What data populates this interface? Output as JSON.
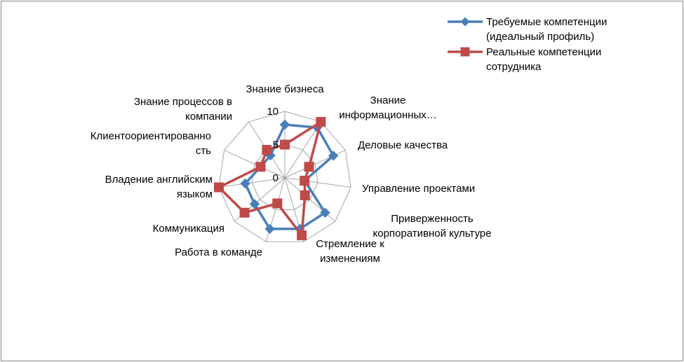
{
  "chart_data": {
    "type": "radar",
    "categories": [
      [
        "Знание бизнеса"
      ],
      [
        "Знание",
        "информационных…"
      ],
      [
        "Деловые качества"
      ],
      [
        "Управление проектами"
      ],
      [
        "Приверженность",
        "корпоративной культуре"
      ],
      [
        "Стремление к",
        "изменениям"
      ],
      [
        "Работа в команде"
      ],
      [
        "Коммуникация"
      ],
      [
        "Владение английским",
        "языком"
      ],
      [
        "Клиентоориентированно",
        "сть"
      ],
      [
        "Знание процессов в",
        "компании"
      ]
    ],
    "ticks": [
      "0",
      "5",
      "10"
    ],
    "range": [
      0,
      10
    ],
    "series": [
      {
        "name_lines": [
          "Требуемые компетенции",
          "(идеальный профиль)"
        ],
        "color": "#4a7ebb",
        "marker": "diamond",
        "values": [
          8,
          9,
          8,
          3,
          8,
          8,
          8,
          6,
          6,
          4,
          4
        ]
      },
      {
        "name_lines": [
          "Реальные компетенции",
          "сотрудника"
        ],
        "color": "#be4b48",
        "marker": "square",
        "values": [
          5,
          10,
          4,
          3,
          4,
          9,
          4,
          8,
          10,
          4,
          5
        ]
      }
    ]
  }
}
